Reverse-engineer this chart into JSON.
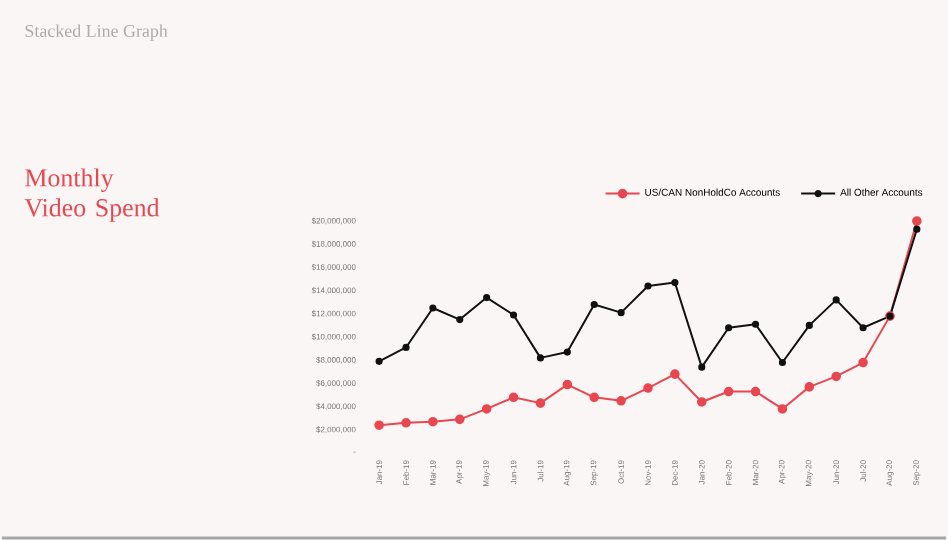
{
  "chart_data": {
    "type": "line",
    "title": "Stacked Line Graph",
    "subtitle": "Monthly Video Spend",
    "categories": [
      "Jan-19",
      "Feb-19",
      "Mar-19",
      "Apr-19",
      "May-19",
      "Jun-19",
      "Jul-19",
      "Aug-19",
      "Sep-19",
      "Oct-19",
      "Nov-19",
      "Dec-19",
      "Jan-20",
      "Feb-20",
      "Mar-20",
      "Apr-20",
      "May-20",
      "Jun-20",
      "Jul-20",
      "Aug-20",
      "Sep-20"
    ],
    "series": [
      {
        "name": "US/CAN NonHoldCo Accounts",
        "color": "#e8474f",
        "values": [
          2400000,
          2600000,
          2700000,
          2900000,
          3800000,
          4800000,
          4300000,
          5900000,
          4800000,
          4500000,
          5600000,
          6800000,
          4400000,
          5300000,
          5300000,
          3800000,
          5700000,
          6600000,
          7800000,
          11800000,
          20000000
        ]
      },
      {
        "name": "All Other Accounts",
        "color": "#111111",
        "values": [
          7900000,
          9100000,
          12500000,
          11500000,
          13400000,
          11900000,
          8200000,
          8700000,
          12800000,
          12100000,
          14400000,
          14700000,
          7400000,
          10800000,
          11100000,
          7800000,
          11000000,
          13200000,
          10800000,
          11800000,
          19300000
        ]
      }
    ],
    "ylim": [
      0,
      20000000
    ],
    "yticks": [
      {
        "value": 0,
        "label": "-"
      },
      {
        "value": 2000000,
        "label": "$2,000,000"
      },
      {
        "value": 4000000,
        "label": "$4,000,000"
      },
      {
        "value": 6000000,
        "label": "$6,000,000"
      },
      {
        "value": 8000000,
        "label": "$8,000,000"
      },
      {
        "value": 10000000,
        "label": "$10,000,000"
      },
      {
        "value": 12000000,
        "label": "$12,000,000"
      },
      {
        "value": 14000000,
        "label": "$14,000,000"
      },
      {
        "value": 16000000,
        "label": "$16,000,000"
      },
      {
        "value": 18000000,
        "label": "$18,000,000"
      },
      {
        "value": 20000000,
        "label": "$20,000,000"
      }
    ],
    "grid": false,
    "legend": "top right",
    "marker": "circle",
    "line_style": "solid"
  }
}
